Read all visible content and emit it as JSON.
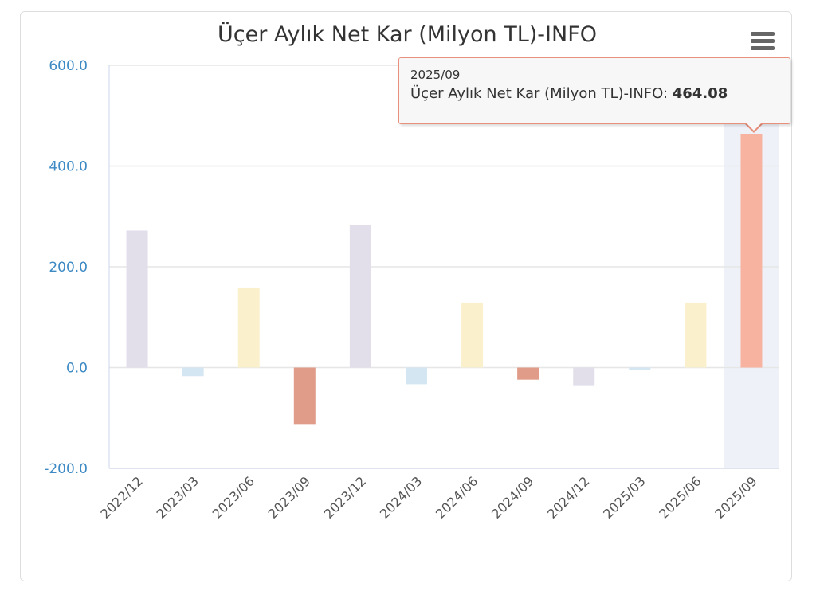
{
  "chart_data": {
    "type": "bar",
    "title": "Üçer Aylık Net Kar (Milyon TL)-INFO",
    "xlabel": "",
    "ylabel": "",
    "ylim": [
      -200,
      600
    ],
    "yticks": [
      "600.0",
      "400.0",
      "200.0",
      "0.0",
      "-200.0"
    ],
    "ytick_values": [
      600,
      400,
      200,
      0,
      -200
    ],
    "categories": [
      "2022/12",
      "2023/03",
      "2023/06",
      "2023/09",
      "2023/12",
      "2024/03",
      "2024/06",
      "2024/09",
      "2024/12",
      "2025/03",
      "2025/06",
      "2025/09"
    ],
    "values": [
      272,
      -17,
      159,
      -112,
      283,
      -33,
      129,
      -24,
      -35,
      -5,
      129,
      464.08
    ],
    "colors": [
      "#e2dfeb",
      "#d4e6f1",
      "#faf1cc",
      "#e09c88",
      "#e2dfeb",
      "#d4e6f1",
      "#faf1cc",
      "#e09c88",
      "#e2dfeb",
      "#d4e6f1",
      "#faf1cc",
      "#f7b2a0"
    ],
    "grid": true,
    "highlighted_index": 11
  },
  "tooltip": {
    "date": "2025/09",
    "series_label": "Üçer Aylık Net Kar (Milyon TL)-INFO: ",
    "value": "464.08"
  },
  "menu_icon": "hamburger-menu-icon"
}
